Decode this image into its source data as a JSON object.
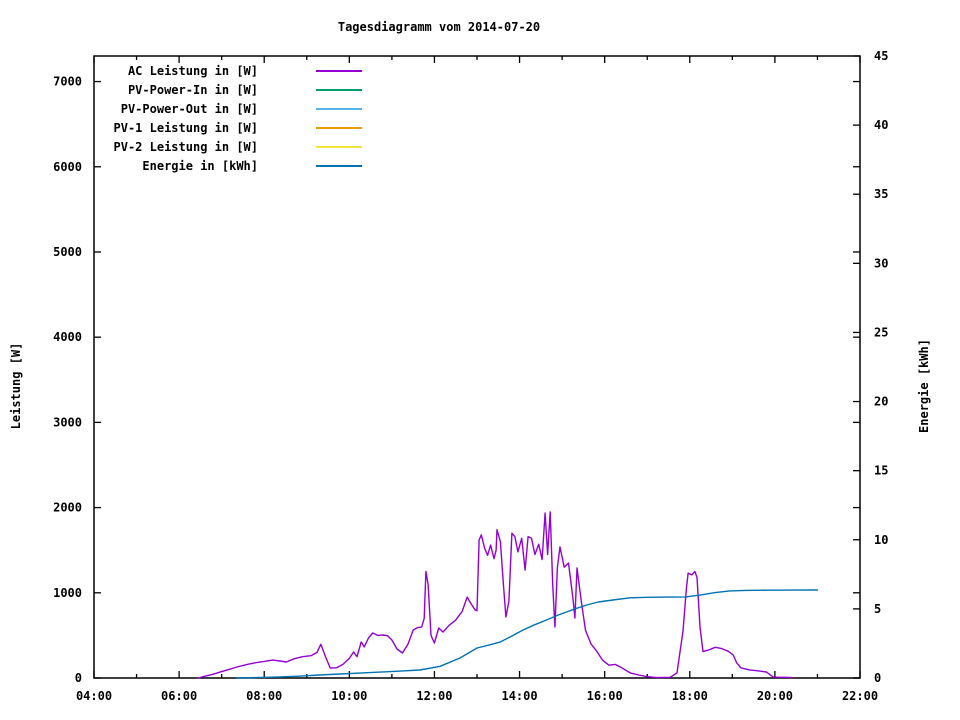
{
  "title": "Tagesdiagramm vom 2014-07-20",
  "colors": {
    "background": "#ffffff",
    "axis": "#000000",
    "text": "#000000"
  },
  "axes": {
    "x": {
      "tick_labels": [
        "04:00",
        "06:00",
        "08:00",
        "10:00",
        "12:00",
        "14:00",
        "16:00",
        "18:00",
        "20:00",
        "22:00"
      ]
    },
    "y1": {
      "label": "Leistung [W]",
      "tick_labels": [
        "0",
        "1000",
        "2000",
        "3000",
        "4000",
        "5000",
        "6000",
        "7000"
      ]
    },
    "y2": {
      "label": "Energie [kWh]",
      "tick_labels": [
        "0",
        "5",
        "10",
        "15",
        "20",
        "25",
        "30",
        "35",
        "40",
        "45"
      ]
    }
  },
  "legend": [
    {
      "label": "AC Leistung in [W]",
      "color": "#9400d3"
    },
    {
      "label": "PV-Power-In in [W]",
      "color": "#009e73"
    },
    {
      "label": "PV-Power-Out in [W]",
      "color": "#56b4e9"
    },
    {
      "label": "PV-1 Leistung in [W]",
      "color": "#e69f00"
    },
    {
      "label": "PV-2 Leistung in [W]",
      "color": "#f0e442"
    },
    {
      "label": "Energie in [kWh]",
      "color": "#0072b2"
    }
  ],
  "chart_data": {
    "type": "line",
    "title": "Tagesdiagramm vom 2014-07-20",
    "xlabel": "",
    "ylabel": "Leistung [W]",
    "y2label": "Energie [kWh]",
    "x_unit": "hours",
    "xlim": [
      4,
      22
    ],
    "x_major_tick_hours": 2,
    "x_minor_tick_hours": 1,
    "ylim": [
      0,
      7300
    ],
    "y_tick_step": 1000,
    "y2lim": [
      0,
      45
    ],
    "y2_tick_step": 5,
    "grid": false,
    "legend_position": "top-left-inside",
    "series": [
      {
        "name": "AC Leistung in [W]",
        "axis": "y1",
        "color": "#9400d3",
        "points": [
          [
            6.45,
            0
          ],
          [
            6.6,
            20
          ],
          [
            6.8,
            45
          ],
          [
            7.0,
            75
          ],
          [
            7.2,
            105
          ],
          [
            7.4,
            135
          ],
          [
            7.6,
            160
          ],
          [
            7.8,
            180
          ],
          [
            8.0,
            195
          ],
          [
            8.2,
            210
          ],
          [
            8.37,
            200
          ],
          [
            8.52,
            188
          ],
          [
            8.7,
            225
          ],
          [
            8.9,
            250
          ],
          [
            9.1,
            262
          ],
          [
            9.24,
            300
          ],
          [
            9.33,
            395
          ],
          [
            9.45,
            240
          ],
          [
            9.55,
            117
          ],
          [
            9.7,
            120
          ],
          [
            9.85,
            160
          ],
          [
            10.0,
            230
          ],
          [
            10.1,
            305
          ],
          [
            10.18,
            250
          ],
          [
            10.28,
            423
          ],
          [
            10.35,
            365
          ],
          [
            10.45,
            470
          ],
          [
            10.55,
            528
          ],
          [
            10.67,
            500
          ],
          [
            10.8,
            505
          ],
          [
            10.9,
            495
          ],
          [
            11.0,
            446
          ],
          [
            11.12,
            340
          ],
          [
            11.25,
            293
          ],
          [
            11.38,
            400
          ],
          [
            11.5,
            563
          ],
          [
            11.6,
            590
          ],
          [
            11.7,
            600
          ],
          [
            11.76,
            700
          ],
          [
            11.8,
            1250
          ],
          [
            11.85,
            1100
          ],
          [
            11.92,
            500
          ],
          [
            12.0,
            411
          ],
          [
            12.1,
            587
          ],
          [
            12.2,
            540
          ],
          [
            12.35,
            620
          ],
          [
            12.5,
            680
          ],
          [
            12.65,
            780
          ],
          [
            12.77,
            950
          ],
          [
            12.85,
            880
          ],
          [
            12.95,
            800
          ],
          [
            13.0,
            790
          ],
          [
            13.05,
            1620
          ],
          [
            13.1,
            1680
          ],
          [
            13.18,
            1520
          ],
          [
            13.25,
            1440
          ],
          [
            13.32,
            1560
          ],
          [
            13.4,
            1400
          ],
          [
            13.45,
            1500
          ],
          [
            13.47,
            1740
          ],
          [
            13.55,
            1600
          ],
          [
            13.62,
            1100
          ],
          [
            13.68,
            716
          ],
          [
            13.75,
            900
          ],
          [
            13.82,
            1700
          ],
          [
            13.89,
            1660
          ],
          [
            13.96,
            1480
          ],
          [
            14.05,
            1640
          ],
          [
            14.13,
            1268
          ],
          [
            14.2,
            1660
          ],
          [
            14.28,
            1640
          ],
          [
            14.36,
            1450
          ],
          [
            14.45,
            1570
          ],
          [
            14.53,
            1390
          ],
          [
            14.6,
            1937
          ],
          [
            14.66,
            1450
          ],
          [
            14.72,
            1949
          ],
          [
            14.78,
            1100
          ],
          [
            14.83,
            599
          ],
          [
            14.89,
            1300
          ],
          [
            14.95,
            1538
          ],
          [
            15.05,
            1300
          ],
          [
            15.15,
            1350
          ],
          [
            15.25,
            950
          ],
          [
            15.3,
            704
          ],
          [
            15.35,
            1291
          ],
          [
            15.45,
            900
          ],
          [
            15.55,
            560
          ],
          [
            15.68,
            400
          ],
          [
            15.82,
            310
          ],
          [
            15.95,
            210
          ],
          [
            16.1,
            150
          ],
          [
            16.25,
            160
          ],
          [
            16.4,
            120
          ],
          [
            16.6,
            60
          ],
          [
            16.8,
            35
          ],
          [
            17.0,
            15
          ],
          [
            17.23,
            5
          ],
          [
            17.54,
            8
          ],
          [
            17.7,
            60
          ],
          [
            17.84,
            550
          ],
          [
            17.92,
            1050
          ],
          [
            17.96,
            1230
          ],
          [
            18.05,
            1210
          ],
          [
            18.12,
            1250
          ],
          [
            18.17,
            1180
          ],
          [
            18.24,
            600
          ],
          [
            18.31,
            310
          ],
          [
            18.45,
            330
          ],
          [
            18.6,
            360
          ],
          [
            18.75,
            345
          ],
          [
            18.9,
            315
          ],
          [
            19.02,
            270
          ],
          [
            19.1,
            180
          ],
          [
            19.2,
            120
          ],
          [
            19.4,
            95
          ],
          [
            19.6,
            85
          ],
          [
            19.8,
            70
          ],
          [
            19.88,
            40
          ],
          [
            19.96,
            10
          ],
          [
            20.1,
            8
          ],
          [
            20.25,
            8
          ],
          [
            20.4,
            5
          ]
        ]
      },
      {
        "name": "PV-Power-In in [W]",
        "axis": "y1",
        "color": "#009e73",
        "points": []
      },
      {
        "name": "PV-Power-Out in [W]",
        "axis": "y1",
        "color": "#56b4e9",
        "points": []
      },
      {
        "name": "PV-1 Leistung in [W]",
        "axis": "y1",
        "color": "#e69f00",
        "points": []
      },
      {
        "name": "PV-2 Leistung in [W]",
        "axis": "y1",
        "color": "#f0e442",
        "points": []
      },
      {
        "name": "Energie in [kWh]",
        "axis": "y2",
        "color": "#0072b2",
        "points": [
          [
            7.35,
            0.0
          ],
          [
            7.8,
            0.03
          ],
          [
            8.37,
            0.07
          ],
          [
            8.8,
            0.13
          ],
          [
            9.3,
            0.22
          ],
          [
            9.78,
            0.29
          ],
          [
            10.3,
            0.37
          ],
          [
            10.72,
            0.43
          ],
          [
            11.2,
            0.5
          ],
          [
            11.66,
            0.58
          ],
          [
            12.13,
            0.85
          ],
          [
            12.6,
            1.45
          ],
          [
            13.0,
            2.17
          ],
          [
            13.3,
            2.4
          ],
          [
            13.54,
            2.6
          ],
          [
            13.8,
            3.0
          ],
          [
            14.08,
            3.47
          ],
          [
            14.35,
            3.85
          ],
          [
            14.64,
            4.2
          ],
          [
            14.9,
            4.55
          ],
          [
            15.11,
            4.78
          ],
          [
            15.35,
            5.05
          ],
          [
            15.58,
            5.28
          ],
          [
            15.85,
            5.5
          ],
          [
            16.19,
            5.64
          ],
          [
            16.6,
            5.8
          ],
          [
            17.0,
            5.84
          ],
          [
            17.5,
            5.85
          ],
          [
            17.9,
            5.87
          ],
          [
            18.24,
            6.0
          ],
          [
            18.6,
            6.18
          ],
          [
            18.94,
            6.3
          ],
          [
            19.3,
            6.34
          ],
          [
            19.8,
            6.35
          ],
          [
            20.4,
            6.36
          ],
          [
            21.0,
            6.37
          ]
        ]
      }
    ]
  }
}
